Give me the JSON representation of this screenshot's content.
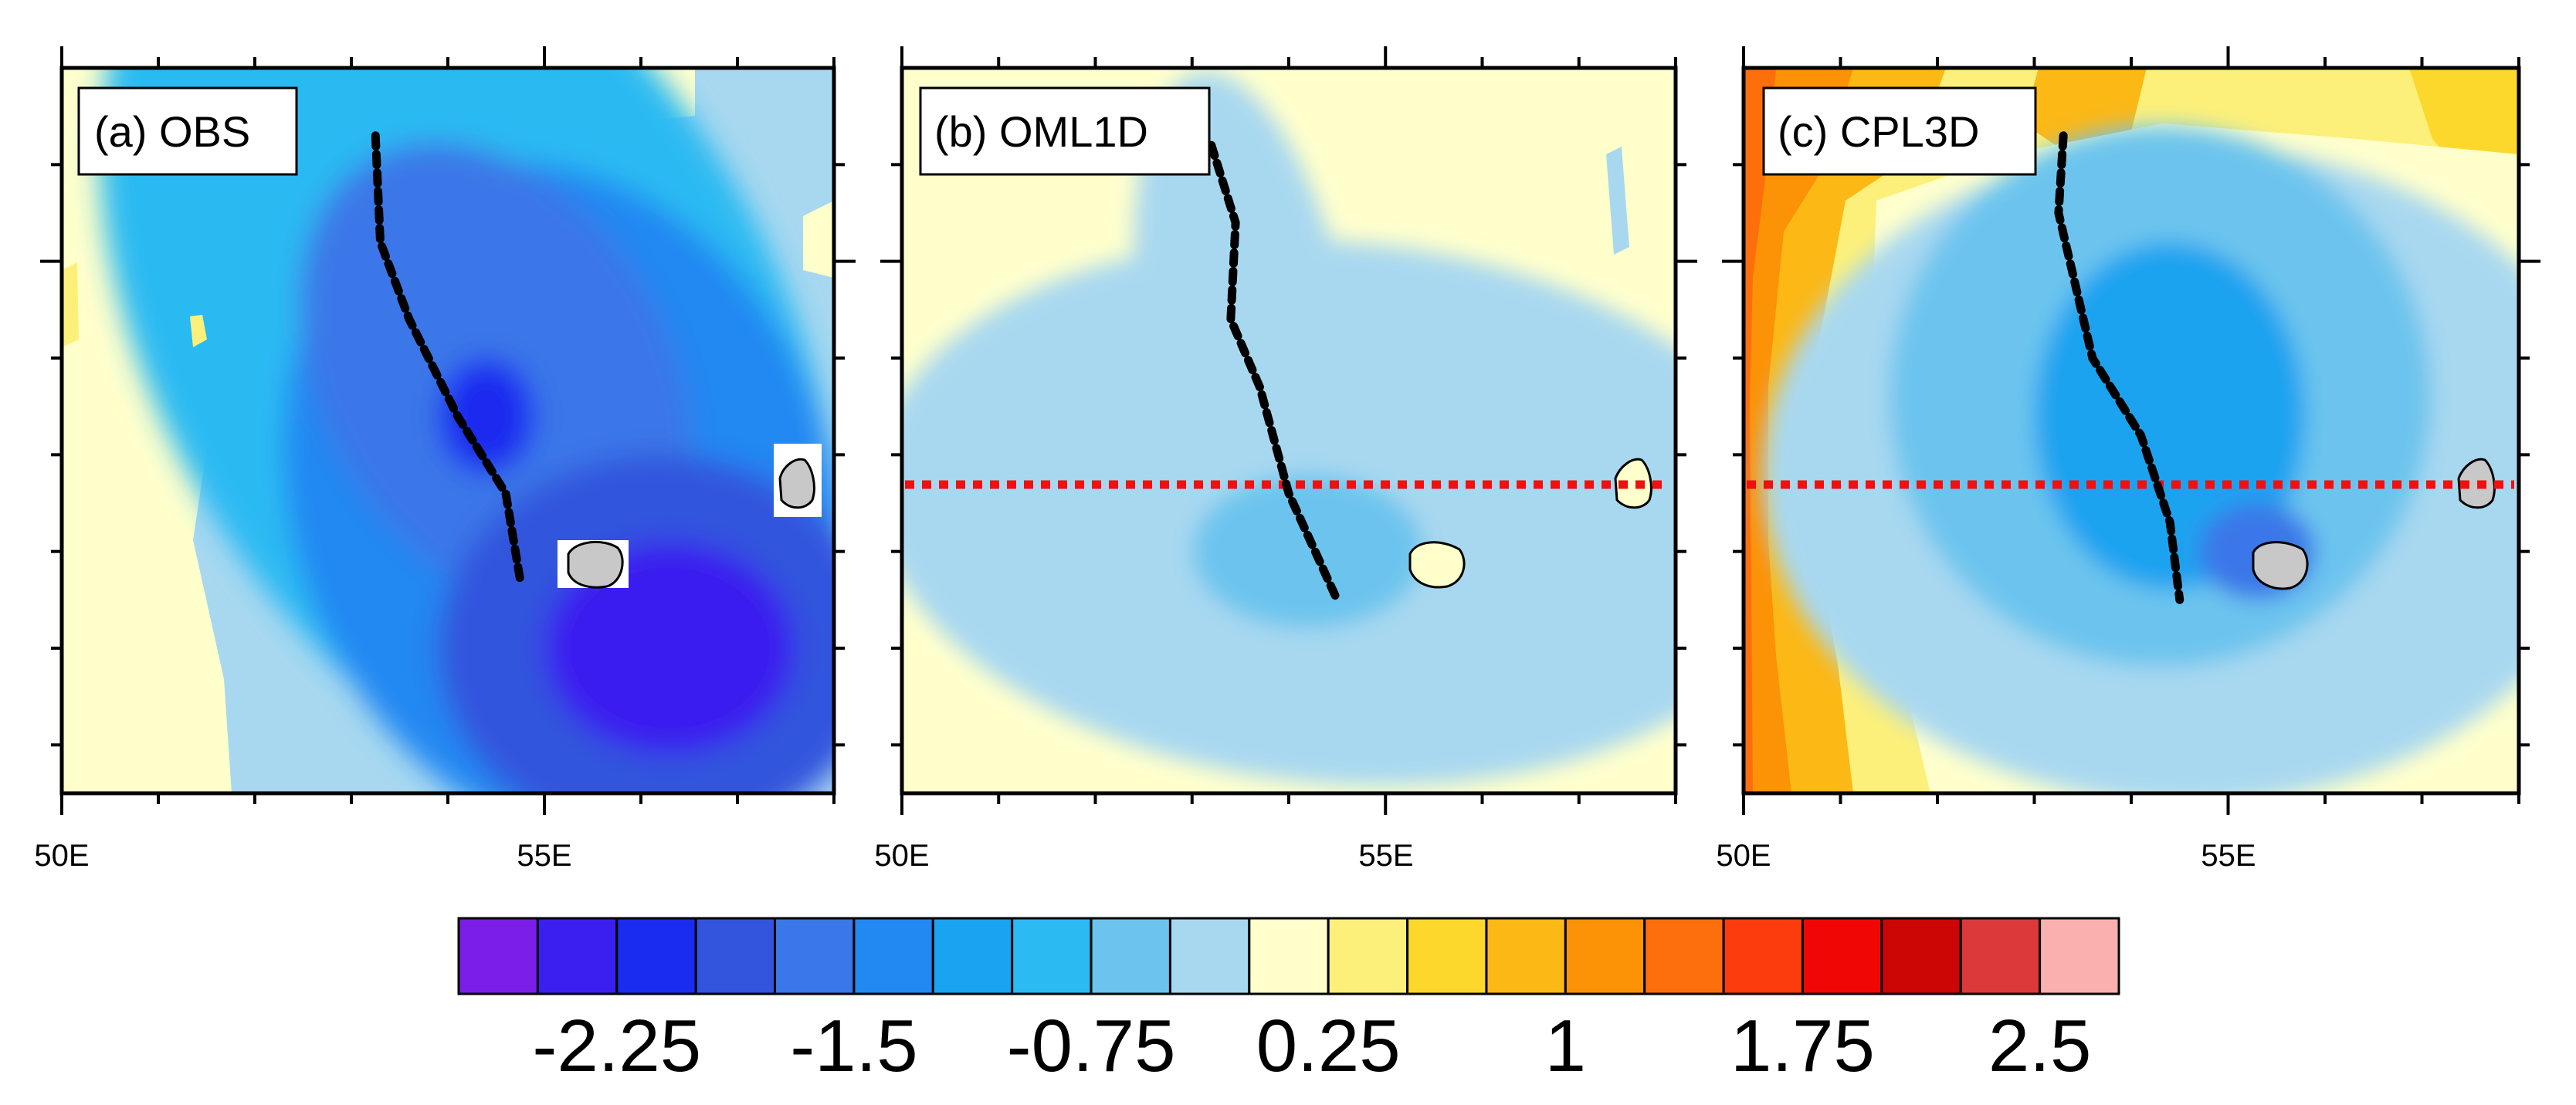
{
  "chart_data": {
    "type": "contour-map",
    "panels": [
      {
        "label": "(a) OBS",
        "x_ticks": [
          "50E",
          "55E"
        ],
        "ylim_note": "",
        "has_red_line": false,
        "dashed_track": [
          [
            53.25,
            -18.7
          ],
          [
            53.3,
            -19.8
          ],
          [
            53.6,
            -20.6
          ],
          [
            54.1,
            -21.6
          ],
          [
            54.6,
            -22.4
          ],
          [
            54.75,
            -23.3
          ]
        ],
        "blobs": [
          {
            "cx": 54.2,
            "cy": -20.8,
            "rx": 3.2,
            "ry": 5.2,
            "rot": -30,
            "value": -0.75
          },
          {
            "cx": 55.2,
            "cy": -22.5,
            "rx": 2.8,
            "ry": 3.6,
            "rot": -20,
            "value": -1.25
          },
          {
            "cx": 54.5,
            "cy": -21.2,
            "rx": 1.8,
            "ry": 2.6,
            "rot": -30,
            "value": -1.5
          },
          {
            "cx": 56.2,
            "cy": -24.0,
            "rx": 2.3,
            "ry": 2.0,
            "rot": 0,
            "value": -1.75
          },
          {
            "cx": 56.3,
            "cy": -24.0,
            "rx": 1.3,
            "ry": 1.1,
            "rot": 0,
            "value": -2.25
          },
          {
            "cx": 54.4,
            "cy": -21.6,
            "rx": 0.5,
            "ry": 0.6,
            "rot": 0,
            "value": -2.0
          }
        ]
      },
      {
        "label": "(b) OML1D",
        "x_ticks": [
          "50E",
          "55E"
        ],
        "has_red_line": true,
        "dashed_track": [
          [
            53.2,
            -18.8
          ],
          [
            53.45,
            -19.6
          ],
          [
            53.4,
            -20.6
          ],
          [
            53.7,
            -21.3
          ],
          [
            54.0,
            -22.4
          ],
          [
            54.5,
            -23.5
          ]
        ],
        "blobs": [
          {
            "cx": 54.5,
            "cy": -22.6,
            "rx": 4.8,
            "ry": 2.8,
            "rot": 5,
            "value": -0.25
          },
          {
            "cx": 53.6,
            "cy": -21.0,
            "rx": 1.1,
            "ry": 3.0,
            "rot": -10,
            "value": -0.25
          },
          {
            "cx": 54.2,
            "cy": -23.0,
            "rx": 1.2,
            "ry": 0.8,
            "rot": 0,
            "value": -0.5
          }
        ]
      },
      {
        "label": "(c) CPL3D",
        "x_ticks": [
          "50E",
          "55E"
        ],
        "has_red_line": true,
        "dashed_track": [
          [
            53.3,
            -18.7
          ],
          [
            53.25,
            -19.5
          ],
          [
            53.6,
            -21.0
          ],
          [
            54.1,
            -21.8
          ],
          [
            54.4,
            -22.7
          ],
          [
            54.5,
            -23.5
          ]
        ],
        "blobs": [
          {
            "cx": 54.6,
            "cy": -22.2,
            "rx": 4.4,
            "ry": 3.4,
            "rot": 0,
            "value": -0.25
          },
          {
            "cx": 54.3,
            "cy": -21.4,
            "rx": 2.8,
            "ry": 2.8,
            "rot": 0,
            "value": -0.5
          },
          {
            "cx": 54.4,
            "cy": -21.6,
            "rx": 1.4,
            "ry": 1.8,
            "rot": 0,
            "value": -1.0
          },
          {
            "cx": 55.3,
            "cy": -23.0,
            "rx": 0.6,
            "ry": 0.5,
            "rot": 0,
            "value": -1.5
          }
        ]
      }
    ],
    "colorbar": {
      "colors": [
        "#7b1fe8",
        "#3b1ff0",
        "#1a2cf0",
        "#3355dd",
        "#3a77e8",
        "#2288f2",
        "#1aa3f0",
        "#2bbaf2",
        "#6cc4ee",
        "#a8d8f0",
        "#ffffcc",
        "#fdf07a",
        "#fdd82c",
        "#fcb815",
        "#fc9206",
        "#fc6f0c",
        "#fc3c0c",
        "#f10606",
        "#cc0505",
        "#dc3a3a",
        "#fbb0b0"
      ],
      "tick_labels": [
        "-2.25",
        "-1.5",
        "-0.75",
        "0.25",
        "1",
        "1.75",
        "2.5"
      ],
      "tick_after_box_index": [
        1,
        4,
        7,
        10,
        13,
        16,
        19
      ]
    },
    "x_domain_lon": [
      50,
      58
    ],
    "y_domain_lat": [
      -25.5,
      -18
    ]
  }
}
